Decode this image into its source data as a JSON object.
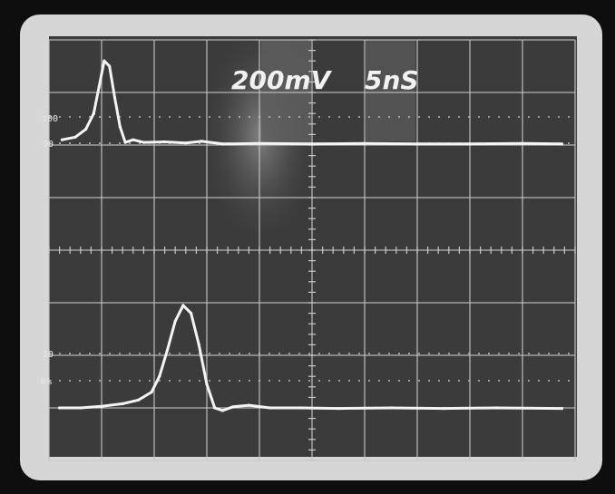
{
  "display": {
    "readout_volts": "200mV",
    "readout_time": "5nS",
    "label_100": "100",
    "label_90": "90",
    "label_10": "10",
    "label_0": "0%"
  },
  "colors": {
    "bezel": "#d8d8d8",
    "screen": "#3b3b3b",
    "grid": "#c9c9c9",
    "trace": "#f4f4f4",
    "readout_glow": "#6a6a6a"
  },
  "chart_data": {
    "type": "line",
    "title": "",
    "xlabel": "",
    "ylabel": "",
    "grid": true,
    "xlim": [
      0,
      10
    ],
    "ylim": [
      0,
      8
    ],
    "series": [
      {
        "x": [
          0.25,
          0.5,
          0.7,
          0.85,
          0.95,
          1.05,
          1.15,
          1.25,
          1.35,
          1.45,
          1.6,
          1.8,
          2.2,
          2.6,
          2.9,
          3.3,
          4.0,
          5.0,
          6.0,
          7.0,
          8.0,
          9.0,
          9.75
        ],
        "y": [
          6.1,
          6.15,
          6.3,
          6.6,
          7.1,
          7.6,
          7.5,
          6.9,
          6.35,
          6.05,
          6.1,
          6.05,
          6.06,
          6.04,
          6.07,
          6.02,
          6.03,
          6.02,
          6.03,
          6.02,
          6.02,
          6.03,
          6.02
        ]
      },
      {
        "x": [
          0.2,
          0.6,
          1.0,
          1.4,
          1.7,
          1.95,
          2.1,
          2.25,
          2.4,
          2.55,
          2.7,
          2.85,
          3.0,
          3.15,
          3.3,
          3.5,
          3.8,
          4.2,
          4.8,
          5.5,
          6.5,
          7.5,
          8.5,
          9.75
        ],
        "y": [
          1.0,
          1.0,
          1.03,
          1.08,
          1.15,
          1.3,
          1.6,
          2.1,
          2.65,
          2.95,
          2.8,
          2.2,
          1.45,
          1.0,
          0.95,
          1.02,
          1.05,
          1.0,
          1.0,
          0.99,
          1.0,
          0.99,
          1.0,
          0.99
        ]
      }
    ]
  }
}
